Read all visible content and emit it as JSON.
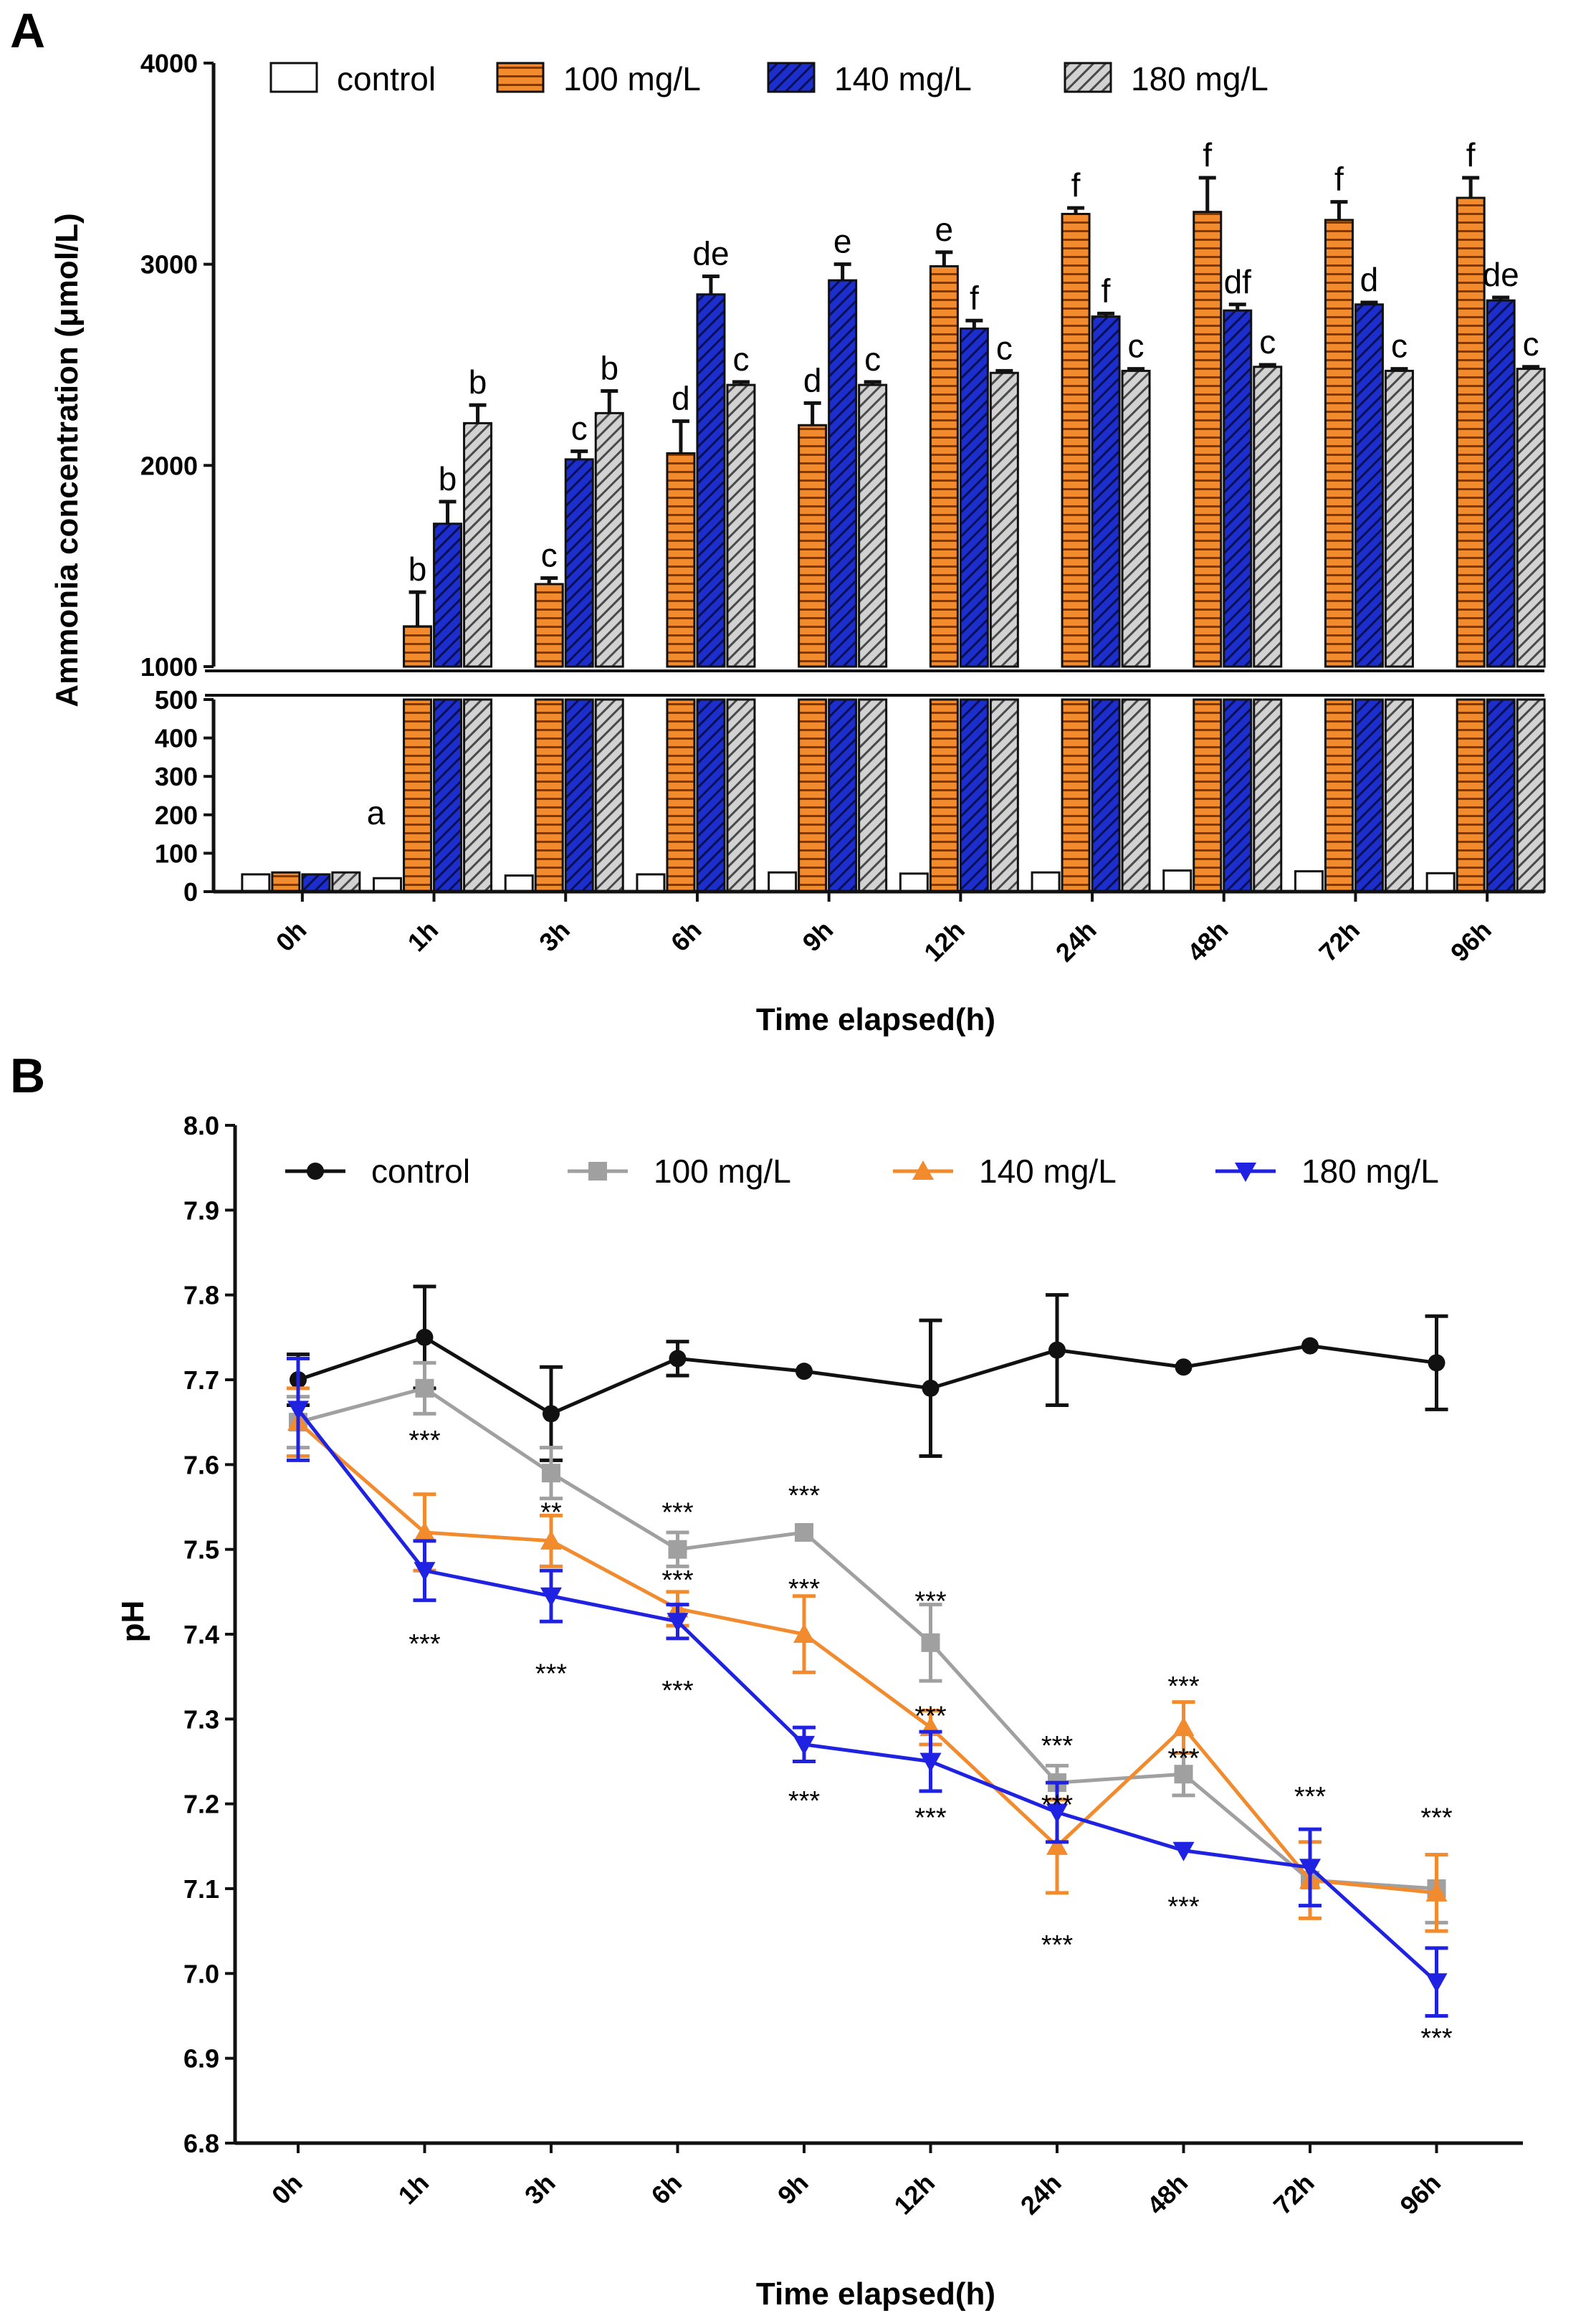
{
  "chart_data": [
    {
      "type": "bar",
      "panel_label": "A",
      "title": "",
      "xlabel": "Time elapsed(h)",
      "ylabel": "Ammonia concentration (μmol/L)",
      "categories": [
        "0h",
        "1h",
        "3h",
        "6h",
        "9h",
        "12h",
        "24h",
        "48h",
        "72h",
        "96h"
      ],
      "axis_break": {
        "lower_ylim": [
          0,
          500
        ],
        "upper_ylim": [
          1000,
          4000
        ]
      },
      "lower_yticks": [
        "0",
        "100",
        "200",
        "300",
        "400",
        "500"
      ],
      "upper_yticks": [
        "1000",
        "2000",
        "3000",
        "4000"
      ],
      "legend": [
        "control",
        "100 mg/L",
        "140 mg/L",
        "180 mg/L"
      ],
      "series": [
        {
          "name": "control",
          "fill": "#ffffff",
          "pattern": "none",
          "values": [
            45,
            35,
            42,
            45,
            50,
            47,
            50,
            55,
            53,
            48
          ],
          "errors": [
            0,
            0,
            0,
            0,
            0,
            0,
            0,
            0,
            0,
            0
          ]
        },
        {
          "name": "100 mg/L",
          "fill": "#f28a2e",
          "pattern": "horizontal-lines",
          "values": [
            50,
            1200,
            1410,
            2060,
            2200,
            2990,
            3250,
            3260,
            3220,
            3330
          ],
          "errors": [
            0,
            170,
            30,
            160,
            110,
            70,
            30,
            170,
            90,
            100
          ]
        },
        {
          "name": "140 mg/L",
          "fill": "#1c2ecc",
          "pattern": "diagonal-lines",
          "values": [
            45,
            1710,
            2030,
            2850,
            2920,
            2680,
            2740,
            2770,
            2800,
            2820
          ],
          "errors": [
            0,
            110,
            40,
            90,
            80,
            40,
            15,
            30,
            10,
            15
          ],
          "sig_labels": [
            "",
            "b",
            "c",
            "de",
            "e",
            "f",
            "f",
            "df",
            "d",
            "de"
          ]
        },
        {
          "name": "180 mg/L",
          "fill": "#c8c8c8",
          "pattern": "diagonal-lines",
          "values": [
            50,
            2210,
            2260,
            2400,
            2400,
            2460,
            2470,
            2490,
            2470,
            2480
          ],
          "errors": [
            0,
            90,
            110,
            15,
            15,
            10,
            10,
            10,
            10,
            10
          ],
          "sig_labels": [
            "",
            "b",
            "b",
            "c",
            "c",
            "c",
            "c",
            "c",
            "c",
            "c"
          ]
        }
      ],
      "sig_labels_100": [
        "",
        "b",
        "c",
        "d",
        "d",
        "e",
        "f",
        "f",
        "f",
        "f"
      ],
      "annotation_0h": "a"
    },
    {
      "type": "line",
      "panel_label": "B",
      "title": "",
      "xlabel": "Time elapsed(h)",
      "ylabel": "pH",
      "categories": [
        "0h",
        "1h",
        "3h",
        "6h",
        "9h",
        "12h",
        "24h",
        "48h",
        "72h",
        "96h"
      ],
      "ylim": [
        6.8,
        8.0
      ],
      "yticks": [
        "6.8",
        "6.9",
        "7.0",
        "7.1",
        "7.2",
        "7.3",
        "7.4",
        "7.5",
        "7.6",
        "7.7",
        "7.8",
        "7.9",
        "8.0"
      ],
      "legend": [
        "control",
        "100 mg/L",
        "140 mg/L",
        "180 mg/L"
      ],
      "series": [
        {
          "name": "control",
          "color": "#111111",
          "marker": "circle",
          "values": [
            7.7,
            7.75,
            7.66,
            7.725,
            7.71,
            7.69,
            7.735,
            7.715,
            7.74,
            7.72
          ],
          "errors": [
            0.03,
            0.06,
            0.055,
            0.02,
            0.0,
            0.08,
            0.065,
            0.0,
            0.0,
            0.055
          ]
        },
        {
          "name": "100 mg/L",
          "color": "#a0a0a0",
          "marker": "square",
          "values": [
            7.65,
            7.69,
            7.59,
            7.5,
            7.52,
            7.39,
            7.225,
            7.235,
            7.11,
            7.1
          ],
          "errors": [
            0.03,
            0.03,
            0.03,
            0.02,
            0.0,
            0.045,
            0.02,
            0.025,
            0.0,
            0.04
          ]
        },
        {
          "name": "140 mg/L",
          "color": "#f28a2e",
          "marker": "triangle-up",
          "values": [
            7.65,
            7.52,
            7.51,
            7.43,
            7.4,
            7.29,
            7.15,
            7.29,
            7.11,
            7.095
          ],
          "errors": [
            0.04,
            0.045,
            0.03,
            0.02,
            0.045,
            0.02,
            0.055,
            0.03,
            0.045,
            0.045
          ]
        },
        {
          "name": "180 mg/L",
          "color": "#1f22e0",
          "marker": "triangle-down",
          "values": [
            7.665,
            7.475,
            7.445,
            7.415,
            7.27,
            7.25,
            7.19,
            7.145,
            7.125,
            6.99
          ],
          "errors": [
            0.06,
            0.035,
            0.03,
            0.02,
            0.02,
            0.035,
            0.035,
            0.0,
            0.045,
            0.04
          ]
        }
      ],
      "significance_marks": [
        {
          "category": "1h",
          "value": 7.63,
          "text": "***"
        },
        {
          "category": "1h",
          "value": 7.39,
          "text": "***"
        },
        {
          "category": "3h",
          "value": 7.545,
          "text": "**"
        },
        {
          "category": "3h",
          "value": 7.355,
          "text": "***"
        },
        {
          "category": "6h",
          "value": 7.545,
          "text": "***"
        },
        {
          "category": "6h",
          "value": 7.465,
          "text": "***"
        },
        {
          "category": "6h",
          "value": 7.335,
          "text": "***"
        },
        {
          "category": "9h",
          "value": 7.565,
          "text": "***"
        },
        {
          "category": "9h",
          "value": 7.455,
          "text": "***"
        },
        {
          "category": "9h",
          "value": 7.205,
          "text": "***"
        },
        {
          "category": "12h",
          "value": 7.44,
          "text": "***"
        },
        {
          "category": "12h",
          "value": 7.305,
          "text": "***"
        },
        {
          "category": "12h",
          "value": 7.185,
          "text": "***"
        },
        {
          "category": "24h",
          "value": 7.27,
          "text": "***"
        },
        {
          "category": "24h",
          "value": 7.2,
          "text": "***"
        },
        {
          "category": "24h",
          "value": 7.035,
          "text": "***"
        },
        {
          "category": "48h",
          "value": 7.34,
          "text": "***"
        },
        {
          "category": "48h",
          "value": 7.255,
          "text": "***"
        },
        {
          "category": "48h",
          "value": 7.08,
          "text": "***"
        },
        {
          "category": "72h",
          "value": 7.21,
          "text": "***"
        },
        {
          "category": "96h",
          "value": 7.185,
          "text": "***"
        },
        {
          "category": "96h",
          "value": 6.925,
          "text": "***"
        }
      ]
    }
  ]
}
